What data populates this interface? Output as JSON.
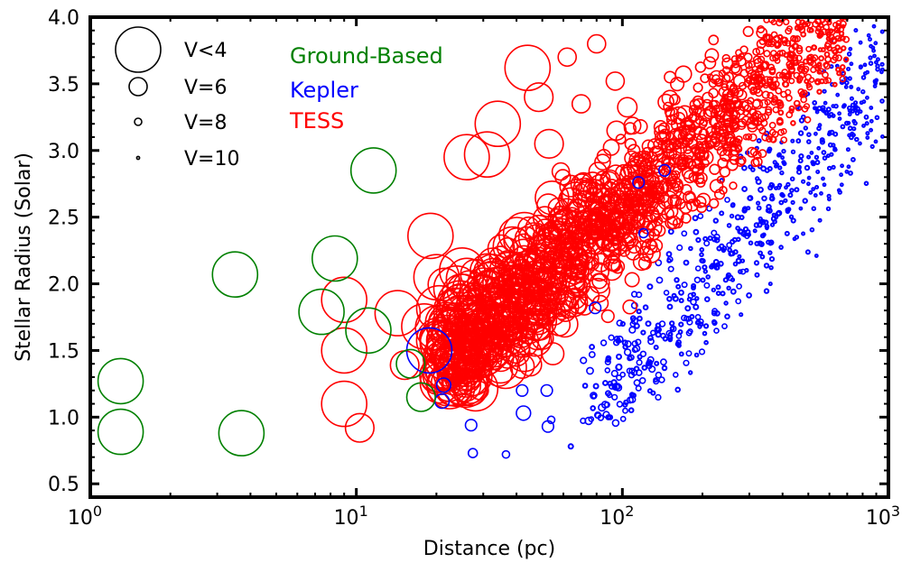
{
  "chart_data": {
    "type": "scatter",
    "xlabel": "Distance (pc)",
    "ylabel": "Stellar Radius (Solar)",
    "x_scale": "log",
    "xlim": [
      1,
      1000
    ],
    "ylim": [
      0.4,
      4.0
    ],
    "x_ticks": [
      {
        "value": 1,
        "base": "10",
        "exp": "0"
      },
      {
        "value": 10,
        "base": "10",
        "exp": "1"
      },
      {
        "value": 100,
        "base": "10",
        "exp": "2"
      },
      {
        "value": 1000,
        "base": "10",
        "exp": "3"
      }
    ],
    "y_ticks": [
      {
        "value": 0.5,
        "label": "0.5"
      },
      {
        "value": 1.0,
        "label": "1.0"
      },
      {
        "value": 1.5,
        "label": "1.5"
      },
      {
        "value": 2.0,
        "label": "2.0"
      },
      {
        "value": 2.5,
        "label": "2.5"
      },
      {
        "value": 3.0,
        "label": "3.0"
      },
      {
        "value": 3.5,
        "label": "3.5"
      },
      {
        "value": 4.0,
        "label": "4.0"
      }
    ],
    "grid": false,
    "marker_size_legend": [
      {
        "label": "V<4",
        "vmag": 4
      },
      {
        "label": "V=6",
        "vmag": 6
      },
      {
        "label": "V=8",
        "vmag": 8
      },
      {
        "label": "V=10",
        "vmag": 10
      }
    ],
    "series": [
      {
        "name": "Ground-Based",
        "color": "#008000",
        "points": [
          {
            "x": 1.3,
            "y": 1.27,
            "vmag": 4
          },
          {
            "x": 1.3,
            "y": 0.89,
            "vmag": 4
          },
          {
            "x": 3.5,
            "y": 2.07,
            "vmag": 4
          },
          {
            "x": 3.7,
            "y": 0.88,
            "vmag": 4
          },
          {
            "x": 8.3,
            "y": 2.19,
            "vmag": 4
          },
          {
            "x": 7.4,
            "y": 1.79,
            "vmag": 4
          },
          {
            "x": 11.6,
            "y": 2.85,
            "vmag": 4
          },
          {
            "x": 11.1,
            "y": 1.65,
            "vmag": 4
          },
          {
            "x": 16.0,
            "y": 1.4,
            "vmag": 5
          },
          {
            "x": 17.5,
            "y": 1.15,
            "vmag": 5
          }
        ]
      },
      {
        "name": "Kepler",
        "color": "#0000ff",
        "points": [
          {
            "x": 18.8,
            "y": 1.5,
            "vmag": 4
          },
          {
            "x": 21.0,
            "y": 1.12,
            "vmag": 6.5
          },
          {
            "x": 21.3,
            "y": 1.24,
            "vmag": 6.5
          },
          {
            "x": 27.0,
            "y": 0.94,
            "vmag": 7
          },
          {
            "x": 27.4,
            "y": 0.73,
            "vmag": 7.5
          },
          {
            "x": 36.5,
            "y": 0.72,
            "vmag": 8
          },
          {
            "x": 42.0,
            "y": 1.2,
            "vmag": 7
          },
          {
            "x": 42.5,
            "y": 1.03,
            "vmag": 6.5
          },
          {
            "x": 52.0,
            "y": 1.2,
            "vmag": 7
          },
          {
            "x": 52.5,
            "y": 0.93,
            "vmag": 7
          },
          {
            "x": 54.0,
            "y": 0.98,
            "vmag": 8
          },
          {
            "x": 64.0,
            "y": 0.78,
            "vmag": 9
          },
          {
            "x": 115.0,
            "y": 2.76,
            "vmag": 7
          },
          {
            "x": 144.0,
            "y": 2.85,
            "vmag": 7
          },
          {
            "x": 120.0,
            "y": 2.38,
            "vmag": 7.5
          },
          {
            "x": 79.0,
            "y": 1.82,
            "vmag": 7
          }
        ],
        "cluster_generated": {
          "x_range": [
            70,
            950
          ],
          "y_range": [
            0.9,
            3.9
          ],
          "vmag_range": [
            8,
            10
          ]
        }
      },
      {
        "name": "TESS",
        "color": "#ff0000",
        "points": [
          {
            "x": 9.0,
            "y": 1.88,
            "vmag": 4
          },
          {
            "x": 9.0,
            "y": 1.5,
            "vmag": 4
          },
          {
            "x": 9.0,
            "y": 1.1,
            "vmag": 4
          },
          {
            "x": 10.3,
            "y": 0.92,
            "vmag": 5
          },
          {
            "x": 14.3,
            "y": 1.78,
            "vmag": 4
          },
          {
            "x": 15.2,
            "y": 1.39,
            "vmag": 5
          },
          {
            "x": 18.0,
            "y": 1.68,
            "vmag": 4
          },
          {
            "x": 19.0,
            "y": 2.36,
            "vmag": 4
          },
          {
            "x": 20.0,
            "y": 2.05,
            "vmag": 4
          },
          {
            "x": 25.0,
            "y": 2.1,
            "vmag": 4
          },
          {
            "x": 26.0,
            "y": 2.95,
            "vmag": 4
          },
          {
            "x": 31.0,
            "y": 2.97,
            "vmag": 4
          },
          {
            "x": 34.0,
            "y": 3.2,
            "vmag": 4
          },
          {
            "x": 44.0,
            "y": 3.62,
            "vmag": 4
          },
          {
            "x": 48.5,
            "y": 3.4,
            "vmag": 5
          },
          {
            "x": 53.0,
            "y": 3.05,
            "vmag": 5
          },
          {
            "x": 62.0,
            "y": 3.7,
            "vmag": 6
          },
          {
            "x": 70.0,
            "y": 3.35,
            "vmag": 6
          },
          {
            "x": 80.0,
            "y": 3.8,
            "vmag": 6
          },
          {
            "x": 94.0,
            "y": 3.52,
            "vmag": 6
          },
          {
            "x": 29.0,
            "y": 1.2,
            "vmag": 6
          },
          {
            "x": 22.0,
            "y": 1.3,
            "vmag": 6
          },
          {
            "x": 27.0,
            "y": 1.4,
            "vmag": 5
          }
        ],
        "cluster_generated": {
          "x_range": [
            20,
            900
          ],
          "y_range": [
            1.2,
            4.0
          ],
          "vmag_range": [
            4,
            10
          ]
        }
      }
    ]
  }
}
